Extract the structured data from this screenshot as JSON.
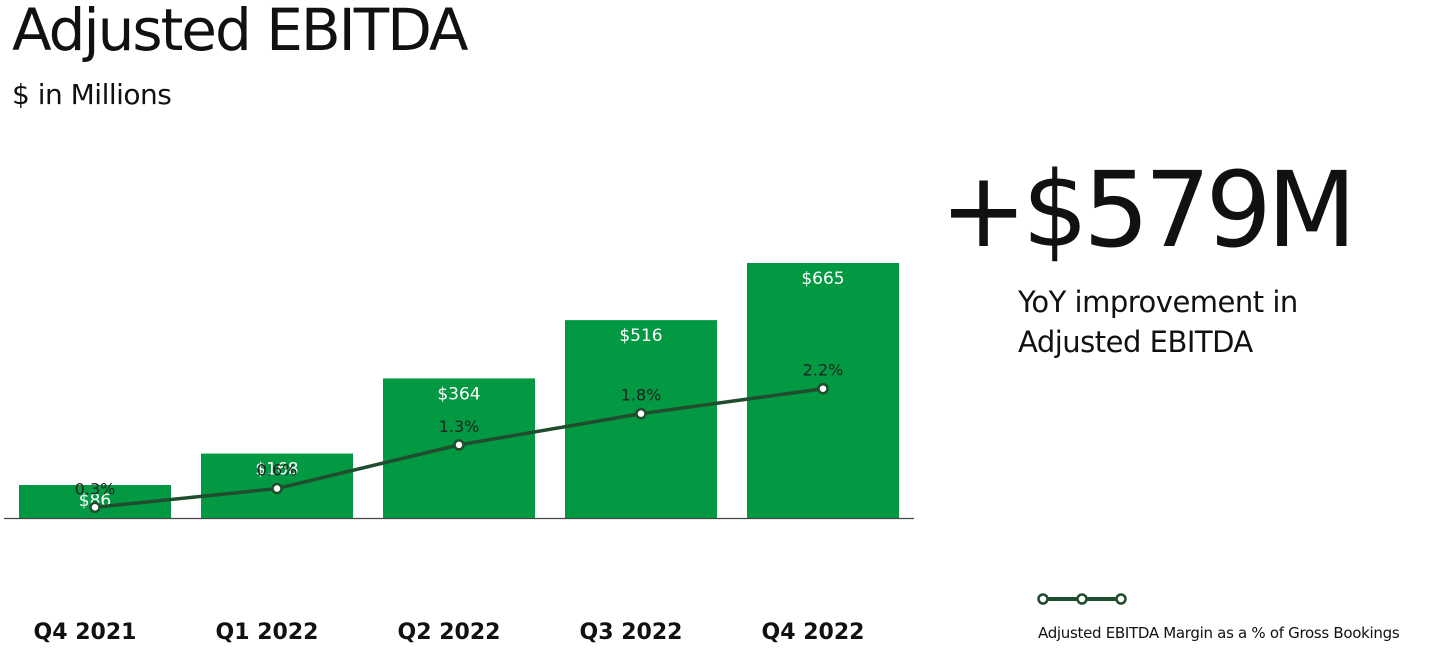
{
  "header": {
    "title": "Adjusted EBITDA",
    "subtitle": "$ in Millions"
  },
  "callout": {
    "headline": "+$579M",
    "line1": "YoY improvement in",
    "line2": "Adjusted EBITDA"
  },
  "legend": {
    "label": "Adjusted EBITDA Margin as a % of Gross Bookings"
  },
  "colors": {
    "bar": "#039943",
    "line": "#1f4d2e"
  },
  "chart_data": {
    "type": "bar",
    "categories": [
      "Q4 2021",
      "Q1 2022",
      "Q2 2022",
      "Q3 2022",
      "Q4 2022"
    ],
    "series": [
      {
        "values": [
          86,
          168,
          364,
          516,
          665
        ],
        "labels": [
          "$86",
          "$168",
          "$364",
          "$516",
          "$665"
        ]
      },
      {
        "name": "Adjusted EBITDA Margin as a % of Gross Bookings",
        "type": "line",
        "values": [
          0.3,
          0.6,
          1.3,
          1.8,
          2.2
        ],
        "labels": [
          "0.3%",
          "0.6%",
          "1.3%",
          "1.8%",
          "2.2%"
        ]
      }
    ],
    "title": "Adjusted EBITDA",
    "subtitle": "$ in Millions",
    "grid": false,
    "legend_position": "bottom-right"
  }
}
